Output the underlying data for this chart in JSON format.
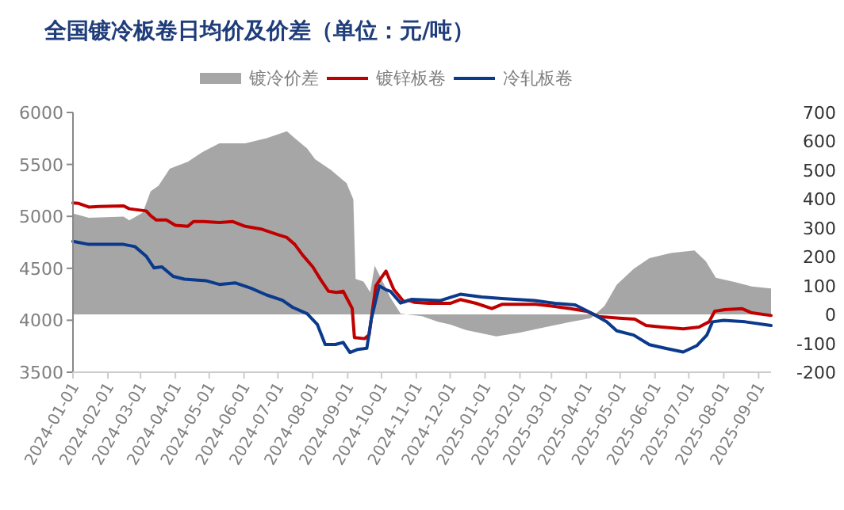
{
  "chart_data": {
    "type": "line",
    "title": "全国镀冷板卷日均价及价差（单位：元/吨）",
    "legend": "top",
    "xlim": [
      "2024-01-01",
      "2025-09-12"
    ],
    "xticks": [
      "2024-01-01",
      "2024-02-01",
      "2024-03-01",
      "2024-04-01",
      "2024-05-01",
      "2024-06-01",
      "2024-07-01",
      "2024-08-01",
      "2024-09-01",
      "2024-10-01",
      "2024-11-01",
      "2024-12-01",
      "2025-01-01",
      "2025-02-01",
      "2025-03-01",
      "2025-04-01",
      "2025-05-01",
      "2025-06-01",
      "2025-07-01",
      "2025-08-01",
      "2025-09-01"
    ],
    "ylim": [
      3500,
      6000
    ],
    "yticks": [
      3500,
      4000,
      4500,
      5000,
      5500,
      6000
    ],
    "y2lim": [
      -200,
      700
    ],
    "y2ticks": [
      -200,
      -100,
      0,
      100,
      200,
      300,
      400,
      500,
      600,
      700
    ],
    "series": [
      {
        "name": "镀冷价差",
        "type": "area",
        "axis": "y2",
        "color": "#a6a6a6",
        "x": [
          "2024-01-01",
          "2024-01-15",
          "2024-02-15",
          "2024-02-20",
          "2024-03-03",
          "2024-03-10",
          "2024-03-17",
          "2024-03-27",
          "2024-04-12",
          "2024-04-26",
          "2024-05-10",
          "2024-06-02",
          "2024-06-21",
          "2024-07-09",
          "2024-07-16",
          "2024-07-27",
          "2024-08-03",
          "2024-08-17",
          "2024-08-31",
          "2024-09-06",
          "2024-09-08",
          "2024-09-15",
          "2024-09-21",
          "2024-09-25",
          "2024-10-02",
          "2024-10-09",
          "2024-10-18",
          "2024-11-06",
          "2024-11-20",
          "2024-12-01",
          "2024-12-15",
          "2025-01-11",
          "2025-02-01",
          "2025-02-23",
          "2025-03-18",
          "2025-04-05",
          "2025-04-17",
          "2025-04-28",
          "2025-05-13",
          "2025-05-27",
          "2025-06-15",
          "2025-07-06",
          "2025-07-16",
          "2025-07-25",
          "2025-08-11",
          "2025-08-26",
          "2025-09-12"
        ],
        "values": [
          350,
          335,
          339,
          326,
          353,
          427,
          446,
          505,
          529,
          565,
          593,
          593,
          611,
          635,
          611,
          575,
          538,
          501,
          455,
          399,
          123,
          114,
          77,
          169,
          114,
          58,
          3,
          -6,
          -25,
          -35,
          -54,
          -76,
          -63,
          -44,
          -26,
          -13,
          29,
          103,
          158,
          195,
          213,
          222,
          185,
          127,
          112,
          97,
          90
        ]
      },
      {
        "name": "镀锌板卷",
        "color": "#c00000",
        "x": [
          "2024-01-01",
          "2024-01-06",
          "2024-01-15",
          "2024-01-24",
          "2024-02-15",
          "2024-02-20",
          "2024-03-06",
          "2024-03-10",
          "2024-03-15",
          "2024-03-24",
          "2024-04-01",
          "2024-04-12",
          "2024-04-17",
          "2024-04-26",
          "2024-05-10",
          "2024-05-22",
          "2024-06-02",
          "2024-06-16",
          "2024-06-30",
          "2024-07-09",
          "2024-07-16",
          "2024-07-23",
          "2024-08-01",
          "2024-08-08",
          "2024-08-15",
          "2024-08-22",
          "2024-08-28",
          "2024-09-02",
          "2024-09-05",
          "2024-09-07",
          "2024-09-16",
          "2024-09-20",
          "2024-09-26",
          "2024-09-30",
          "2024-10-05",
          "2024-10-08",
          "2024-10-12",
          "2024-10-16",
          "2024-10-21",
          "2024-10-25",
          "2024-10-30",
          "2024-11-12",
          "2024-12-01",
          "2024-12-10",
          "2024-12-24",
          "2025-01-07",
          "2025-01-16",
          "2025-02-01",
          "2025-02-15",
          "2025-02-28",
          "2025-03-18",
          "2025-04-01",
          "2025-04-12",
          "2025-04-30",
          "2025-05-14",
          "2025-05-24",
          "2025-06-07",
          "2025-06-26",
          "2025-07-10",
          "2025-07-19",
          "2025-07-24",
          "2025-08-02",
          "2025-08-17",
          "2025-08-26",
          "2025-09-12"
        ],
        "values": [
          5130,
          5125,
          5090,
          5095,
          5100,
          5073,
          5052,
          5006,
          4965,
          4965,
          4914,
          4904,
          4950,
          4950,
          4940,
          4950,
          4904,
          4878,
          4827,
          4796,
          4730,
          4627,
          4514,
          4391,
          4279,
          4268,
          4279,
          4176,
          4115,
          3833,
          3823,
          3859,
          4330,
          4396,
          4473,
          4396,
          4294,
          4243,
          4176,
          4192,
          4173,
          4163,
          4163,
          4199,
          4163,
          4112,
          4153,
          4153,
          4153,
          4138,
          4112,
          4087,
          4036,
          4020,
          4010,
          3949,
          3934,
          3918,
          3934,
          3985,
          4087,
          4102,
          4112,
          4071,
          4046
        ]
      },
      {
        "name": "冷轧板卷",
        "color": "#0b3a8c",
        "x": [
          "2024-01-01",
          "2024-01-15",
          "2024-02-15",
          "2024-02-25",
          "2024-03-06",
          "2024-03-13",
          "2024-03-20",
          "2024-03-30",
          "2024-04-09",
          "2024-04-28",
          "2024-05-10",
          "2024-05-24",
          "2024-06-07",
          "2024-06-21",
          "2024-07-05",
          "2024-07-14",
          "2024-07-27",
          "2024-08-05",
          "2024-08-12",
          "2024-08-21",
          "2024-08-28",
          "2024-09-03",
          "2024-09-10",
          "2024-09-18",
          "2024-09-22",
          "2024-09-29",
          "2024-10-05",
          "2024-10-09",
          "2024-10-18",
          "2024-10-28",
          "2024-11-22",
          "2024-12-10",
          "2024-12-29",
          "2025-01-16",
          "2025-02-14",
          "2025-03-04",
          "2025-03-22",
          "2025-04-05",
          "2025-04-19",
          "2025-04-28",
          "2025-05-13",
          "2025-05-27",
          "2025-06-10",
          "2025-06-26",
          "2025-07-08",
          "2025-07-17",
          "2025-07-22",
          "2025-08-01",
          "2025-08-20",
          "2025-09-12"
        ],
        "values": [
          4760,
          4730,
          4730,
          4709,
          4617,
          4504,
          4514,
          4422,
          4396,
          4381,
          4345,
          4360,
          4309,
          4243,
          4192,
          4125,
          4063,
          3961,
          3767,
          3767,
          3787,
          3690,
          3720,
          3730,
          4012,
          4330,
          4294,
          4278,
          4166,
          4202,
          4189,
          4250,
          4224,
          4209,
          4189,
          4163,
          4148,
          4071,
          3985,
          3898,
          3857,
          3765,
          3730,
          3694,
          3755,
          3857,
          3985,
          4000,
          3985,
          3949
        ]
      }
    ]
  }
}
